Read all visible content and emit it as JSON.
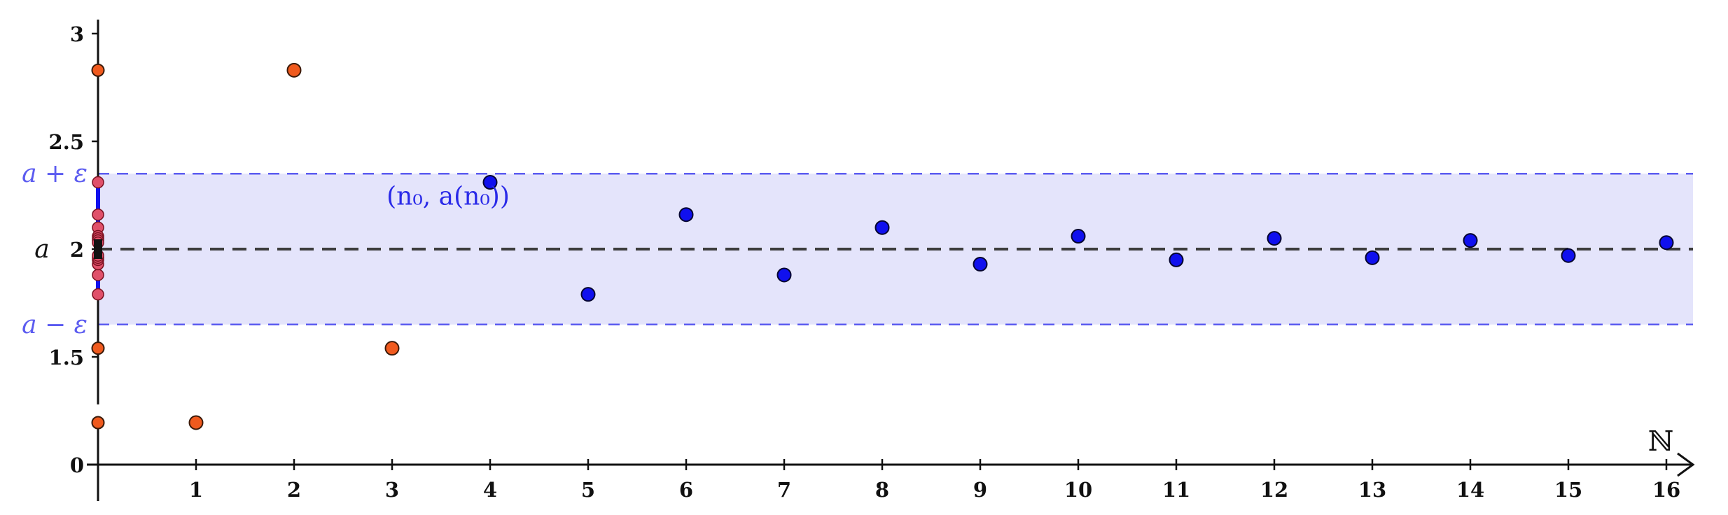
{
  "chart_data": {
    "type": "scatter",
    "title": "",
    "x_axis_label": "ℕ",
    "x_ticks": [
      "1",
      "2",
      "3",
      "4",
      "5",
      "6",
      "7",
      "8",
      "9",
      "10",
      "11",
      "12",
      "13",
      "14",
      "15",
      "16"
    ],
    "y_ticks": [
      "0",
      "1.5",
      "2",
      "2.5",
      "3"
    ],
    "xlim": [
      0,
      16.3
    ],
    "ylim_lower_panel": [
      -0.3,
      0.6
    ],
    "ylim_upper_panel": [
      1.25,
      3.1
    ],
    "y_axis_break": true,
    "grid": false,
    "limit_a": 2,
    "epsilon": 0.35,
    "limit_label": "a",
    "upper_band_label": "a + ε",
    "lower_band_label": "a − ε",
    "point_annotation": "(n₀, a(n₀))",
    "annotation_point_index": 4,
    "first_point_inside_band": 4,
    "colors": {
      "outside_band": "#f05a1e",
      "inside_band": "#1010ee",
      "band_fill": "#e4e4fb",
      "band_line": "#5b5bf0",
      "limit_line": "#3c3c3c",
      "axis": "#111111"
    },
    "series": [
      {
        "x": [
          0,
          1,
          2,
          3,
          4,
          5,
          6,
          7,
          8,
          9,
          10,
          11,
          12,
          13,
          14,
          15,
          16
        ],
        "y": [
          0.15,
          0.15,
          2.83,
          1.54,
          2.31,
          1.79,
          2.16,
          1.88,
          2.1,
          1.93,
          2.06,
          1.95,
          2.05,
          1.96,
          2.04,
          1.97,
          2.03
        ]
      }
    ]
  }
}
